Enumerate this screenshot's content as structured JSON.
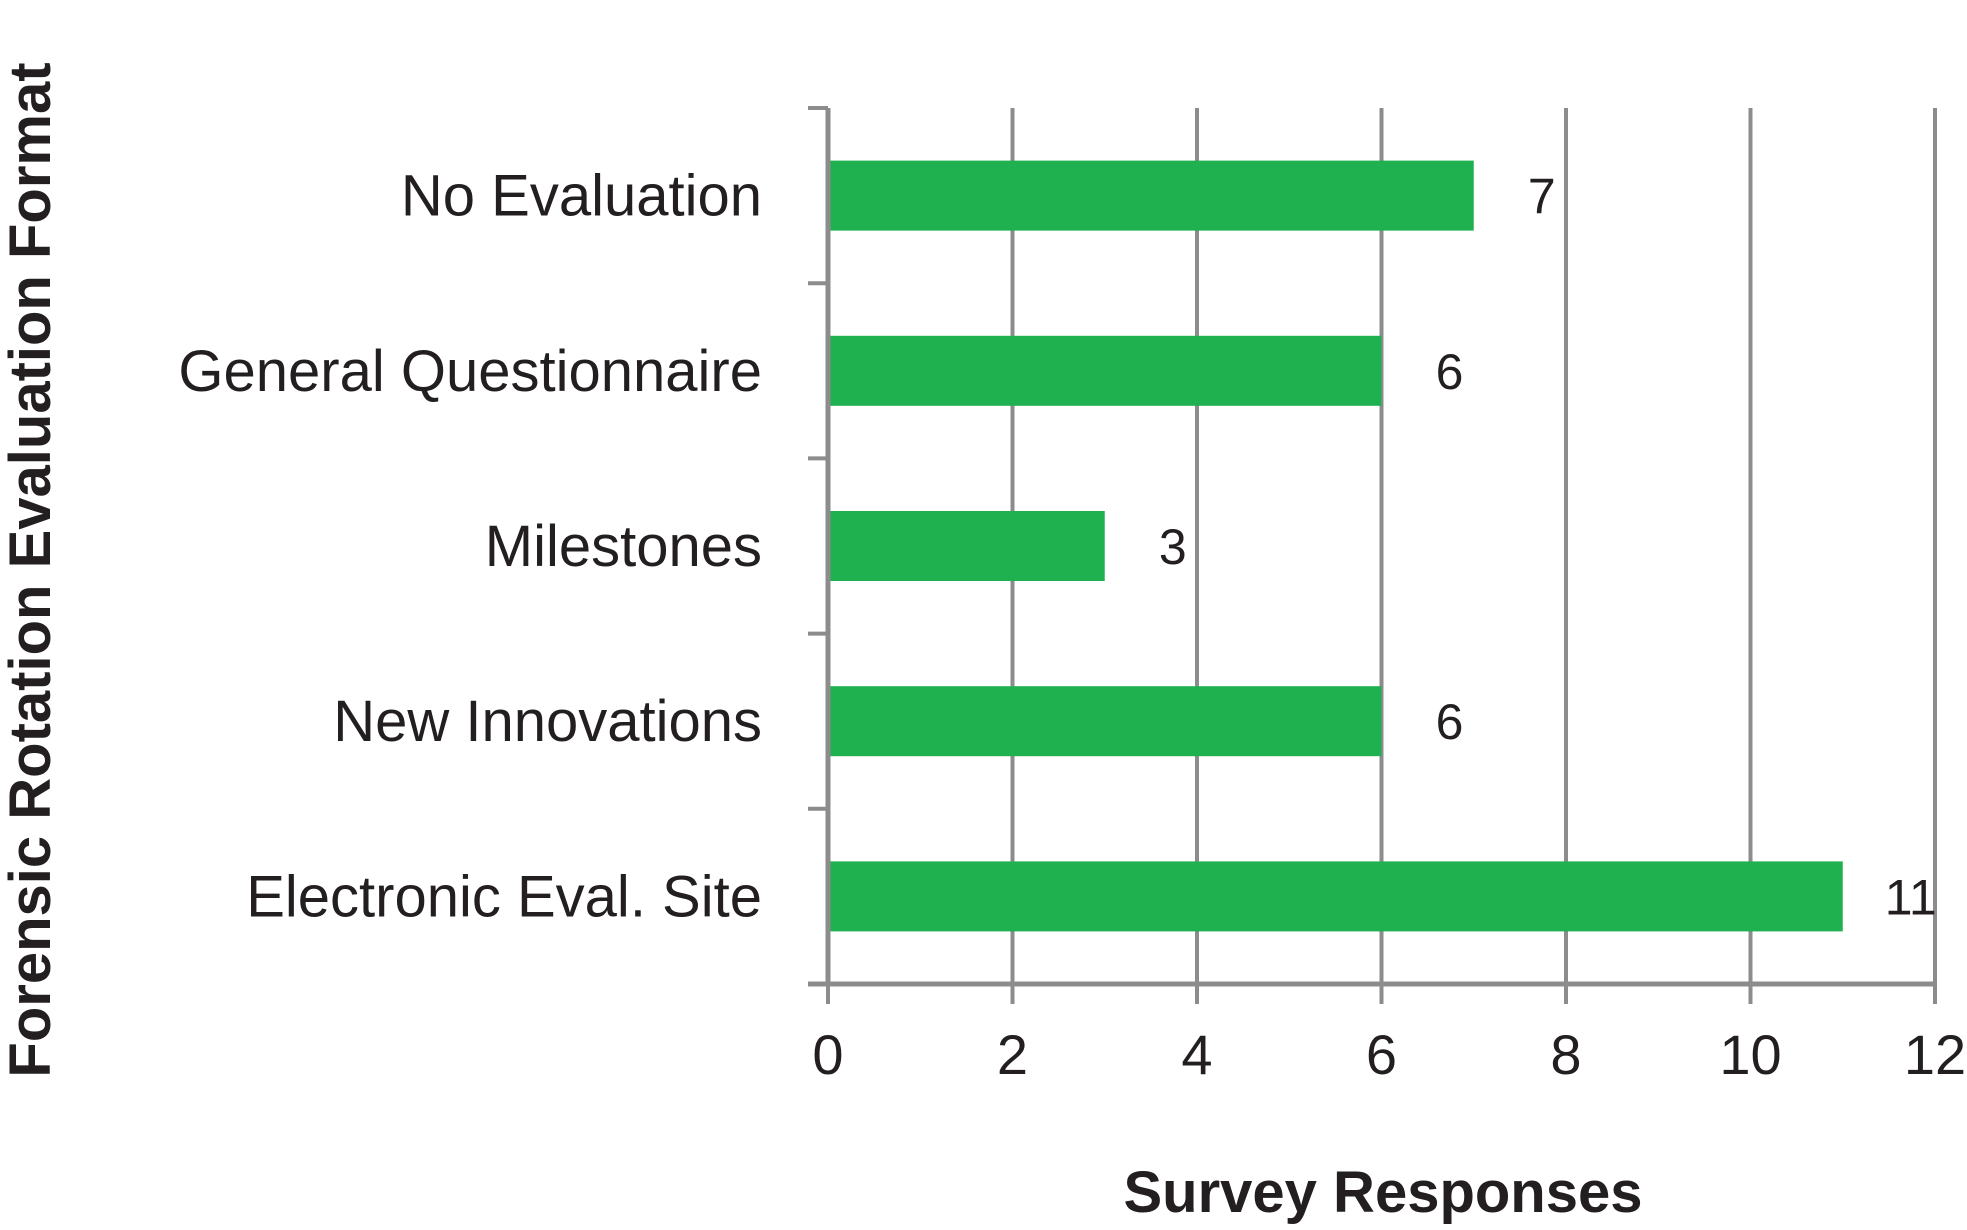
{
  "chart_data": {
    "type": "bar",
    "orientation": "horizontal",
    "categories": [
      "No Evaluation",
      "General Questionnaire",
      "Milestones",
      "New Innovations",
      "Electronic Eval. Site"
    ],
    "values": [
      7,
      6,
      3,
      6,
      11
    ],
    "data_labels": [
      "7",
      "6",
      "3",
      "6",
      "11"
    ],
    "title": "",
    "xlabel": "Survey Responses",
    "ylabel": "Forensic Rotation Evaluation  Format",
    "xlim": [
      0,
      12
    ],
    "x_ticks": [
      "0",
      "2",
      "4",
      "6",
      "8",
      "10",
      "12"
    ],
    "grid": "vertical",
    "legend": "none",
    "bar_color": "#1fb14f",
    "axis_color": "#8c8c8c",
    "text_color": "#231f20"
  }
}
